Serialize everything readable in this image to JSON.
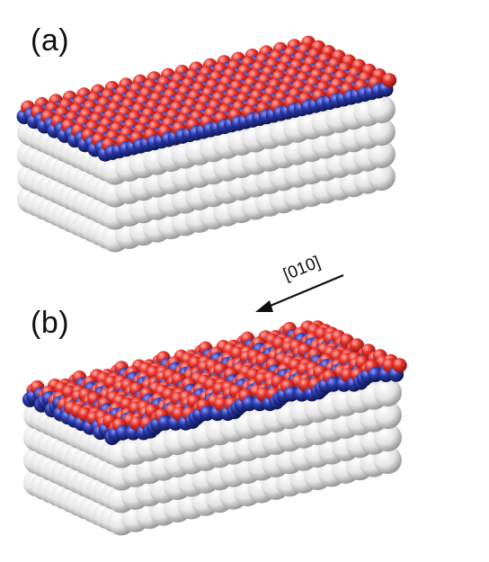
{
  "panels": [
    {
      "label": "(a)",
      "adsorbate_pattern": "rows"
    },
    {
      "label": "(b)",
      "adsorbate_pattern": "zigzag"
    }
  ],
  "direction": {
    "label": "[010]"
  },
  "colors": {
    "substrate": "#e6e6e6",
    "oxygen": "#e8322b",
    "nitrogen": "#2b3aa8",
    "text": "#111111"
  }
}
